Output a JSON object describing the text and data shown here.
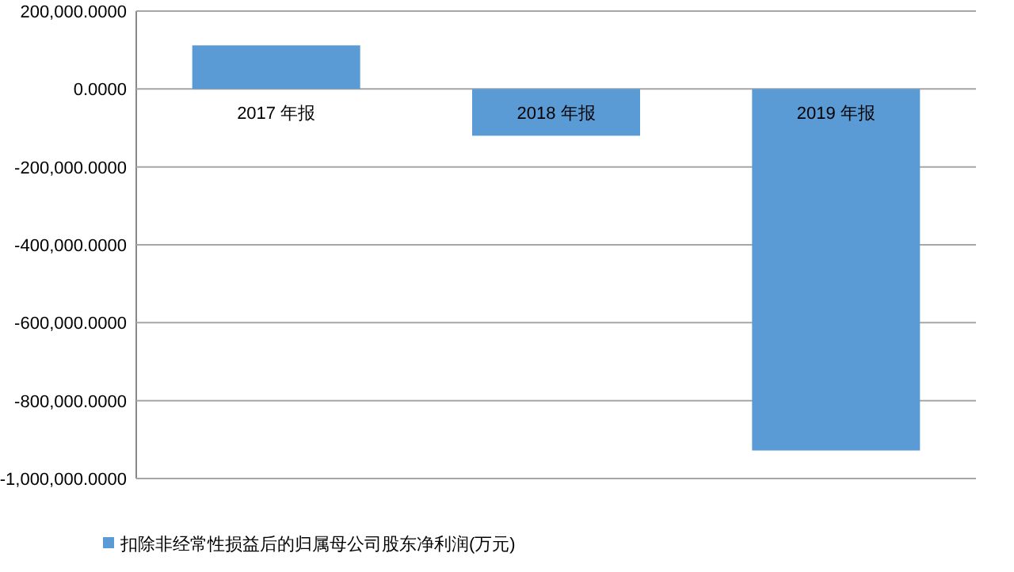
{
  "chart_data": {
    "type": "bar",
    "categories": [
      "2017 年报",
      "2018 年报",
      "2019 年报"
    ],
    "series": [
      {
        "name": "扣除非经常性损益后的归属母公司股东净利润(万元)",
        "color": "#5b9bd5",
        "values": [
          112000,
          -120000,
          -928000
        ]
      }
    ],
    "ylim": [
      -1000000,
      200000
    ],
    "yticks": [
      {
        "value": 200000,
        "label": "200,000.0000"
      },
      {
        "value": 0,
        "label": "0.0000"
      },
      {
        "value": -200000,
        "label": "-200,000.0000"
      },
      {
        "value": -400000,
        "label": "-400,000.0000"
      },
      {
        "value": -600000,
        "label": "-600,000.0000"
      },
      {
        "value": -800000,
        "label": "-800,000.0000"
      },
      {
        "value": -1000000,
        "label": "-1,000,000.0000"
      }
    ],
    "grid": "y",
    "legend": "bottom"
  }
}
